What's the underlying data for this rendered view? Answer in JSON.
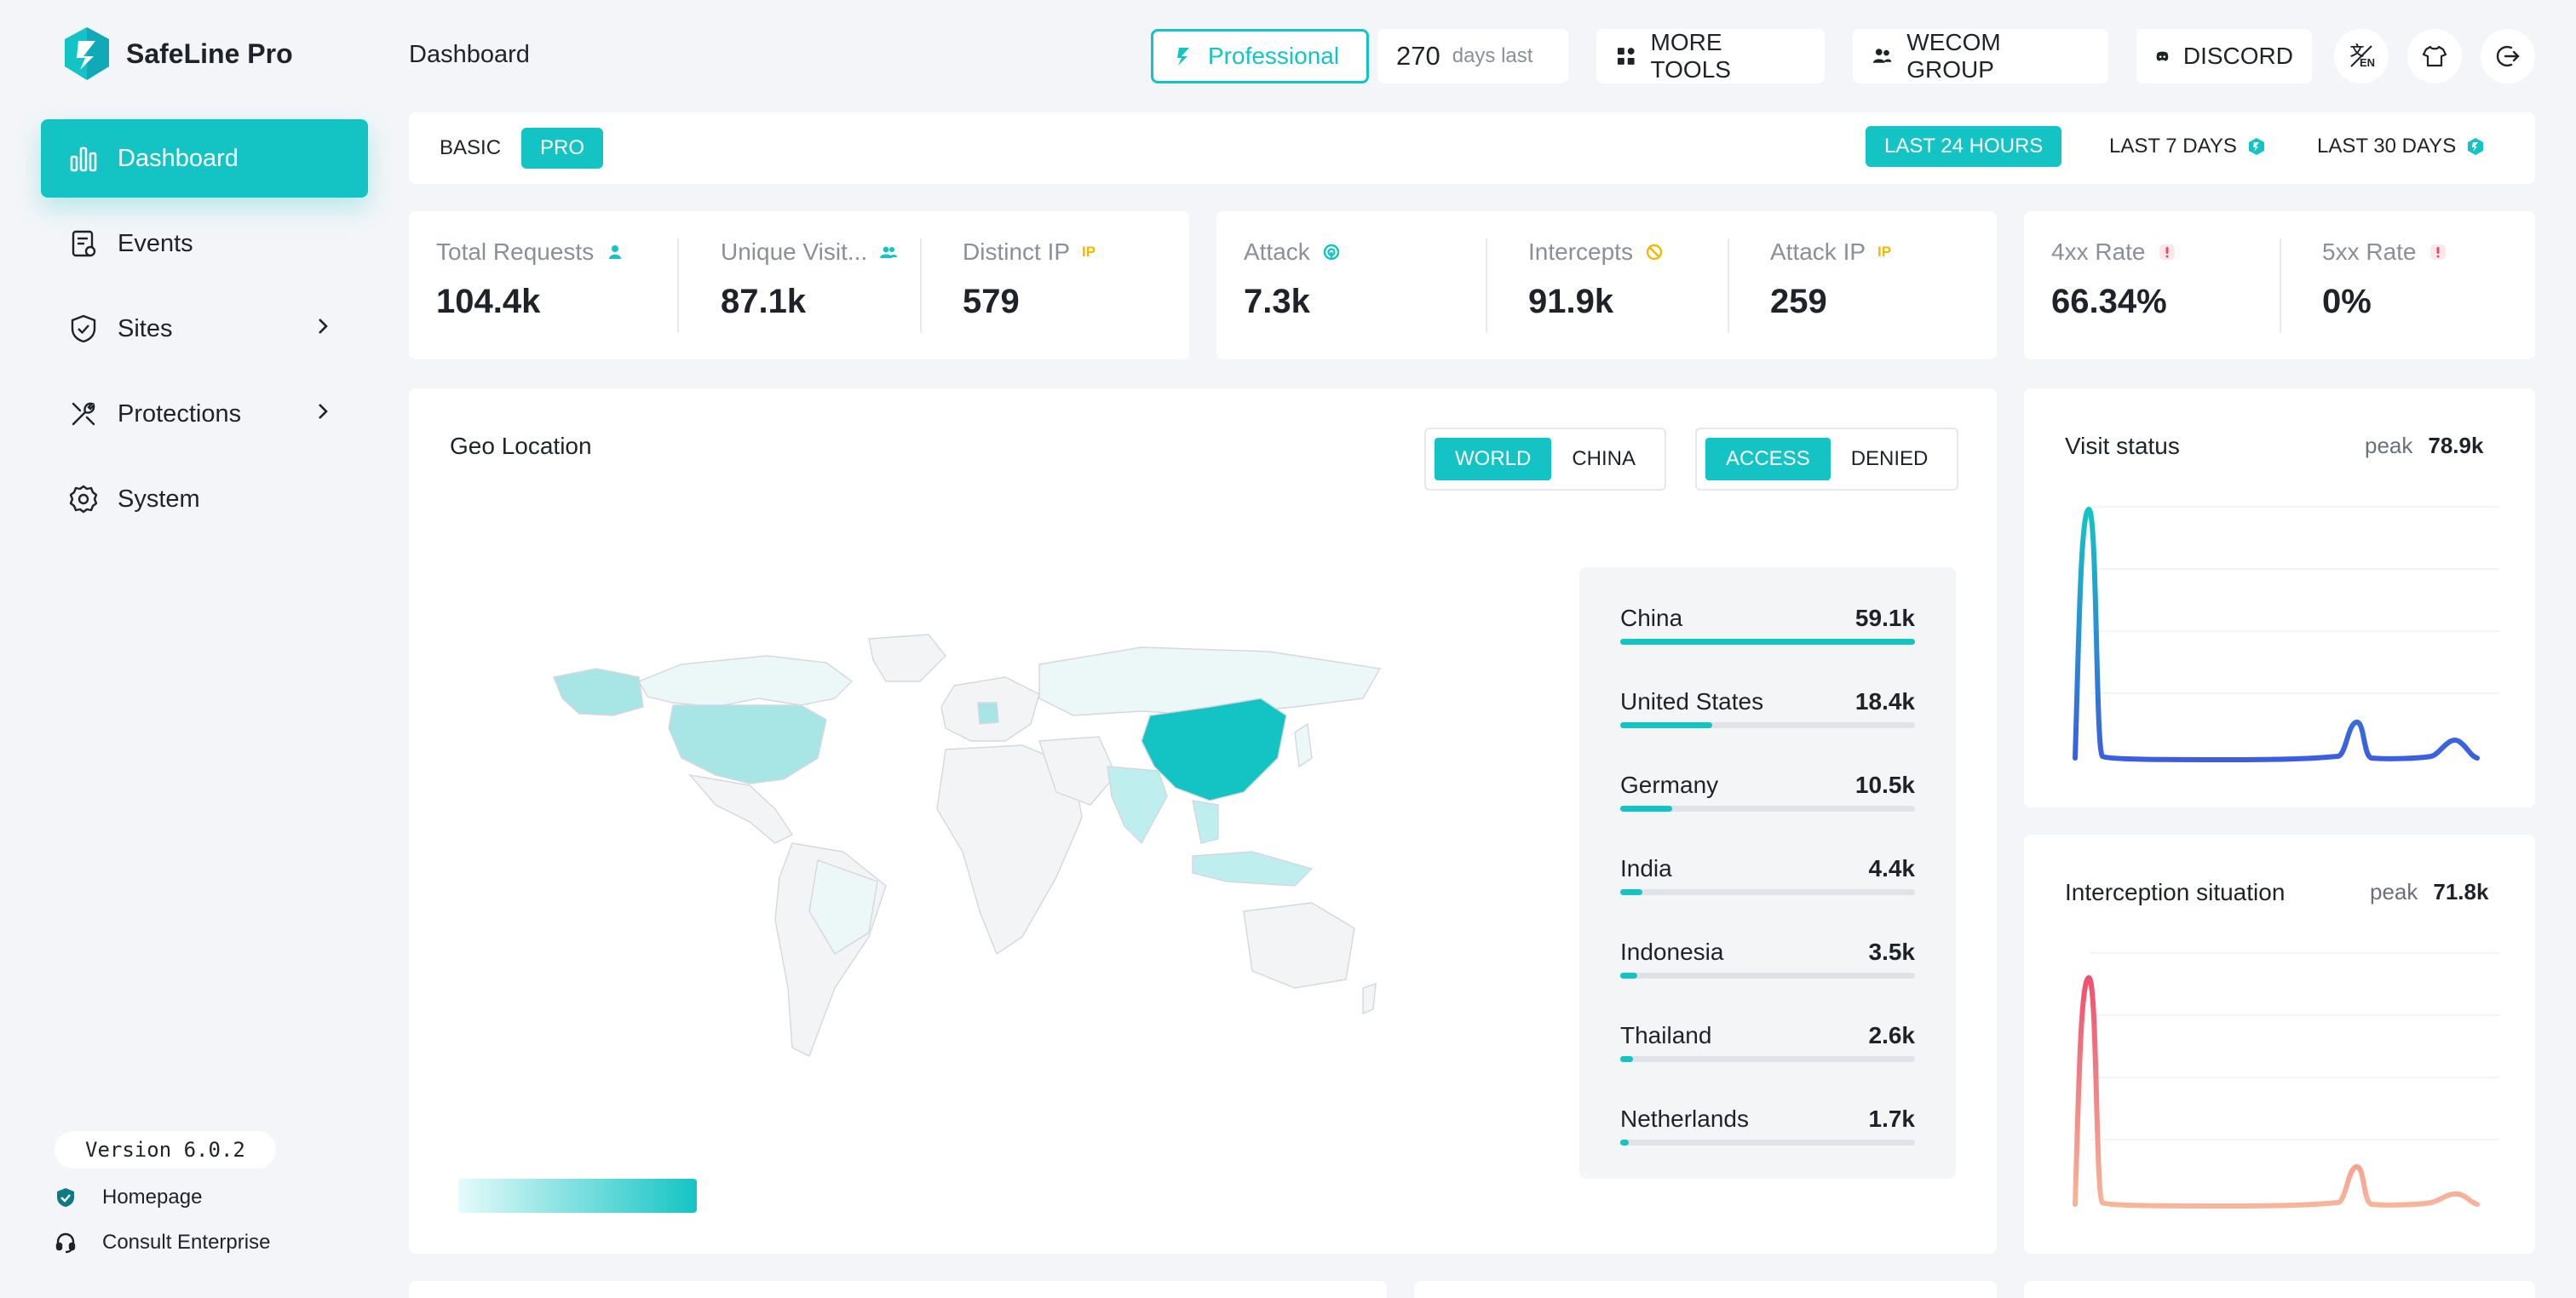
{
  "app": {
    "name": "SafeLine Pro",
    "page_title": "Dashboard"
  },
  "sidebar": {
    "items": [
      {
        "label": "Dashboard",
        "icon": "bar-chart-icon",
        "active": true
      },
      {
        "label": "Events",
        "icon": "clipboard-icon"
      },
      {
        "label": "Sites",
        "icon": "shield-icon",
        "has_submenu": true
      },
      {
        "label": "Protections",
        "icon": "tools-icon",
        "has_submenu": true
      },
      {
        "label": "System",
        "icon": "gear-icon"
      }
    ],
    "version": "Version 6.0.2",
    "links": [
      {
        "label": "Homepage",
        "icon": "shield-badge-icon"
      },
      {
        "label": "Consult Enterprise",
        "icon": "headset-icon"
      }
    ]
  },
  "header": {
    "license": "Professional",
    "days_value": "270",
    "days_label": "days last",
    "more_tools": "MORE TOOLS",
    "wecom": "WECOM GROUP",
    "discord": "DISCORD",
    "icons": [
      "language-icon",
      "shirt-icon",
      "logout-icon"
    ]
  },
  "filters": {
    "modes": [
      "BASIC",
      "PRO"
    ],
    "active_mode": "PRO",
    "ranges": [
      "LAST 24 HOURS",
      "LAST 7 DAYS",
      "LAST 30 DAYS"
    ],
    "active_range": "LAST 24 HOURS"
  },
  "stats": {
    "total_requests": {
      "label": "Total Requests",
      "value": "104.4k"
    },
    "unique_visitors": {
      "label": "Unique Visit...",
      "value": "87.1k"
    },
    "distinct_ip": {
      "label": "Distinct IP",
      "value": "579",
      "tag": "IP"
    },
    "attack": {
      "label": "Attack",
      "value": "7.3k"
    },
    "intercepts": {
      "label": "Intercepts",
      "value": "91.9k"
    },
    "attack_ip": {
      "label": "Attack IP",
      "value": "259",
      "tag": "IP"
    },
    "rate_4xx": {
      "label": "4xx Rate",
      "value": "66.34%"
    },
    "rate_5xx": {
      "label": "5xx Rate",
      "value": "0%"
    }
  },
  "geo": {
    "title": "Geo Location",
    "scope_options": [
      "WORLD",
      "CHINA"
    ],
    "scope_active": "WORLD",
    "type_options": [
      "ACCESS",
      "DENIED"
    ],
    "type_active": "ACCESS",
    "ranking": [
      {
        "country": "China",
        "value": "59.1k",
        "num": 59.1
      },
      {
        "country": "United States",
        "value": "18.4k",
        "num": 18.4
      },
      {
        "country": "Germany",
        "value": "10.5k",
        "num": 10.5
      },
      {
        "country": "India",
        "value": "4.4k",
        "num": 4.4
      },
      {
        "country": "Indonesia",
        "value": "3.5k",
        "num": 3.5
      },
      {
        "country": "Thailand",
        "value": "2.6k",
        "num": 2.6
      },
      {
        "country": "Netherlands",
        "value": "1.7k",
        "num": 1.7
      }
    ]
  },
  "visit_status": {
    "title": "Visit status",
    "peak_label": "peak",
    "peak_value": "78.9k",
    "colors": {
      "top": "#14c4c4",
      "bottom": "#3d5de0"
    }
  },
  "interception": {
    "title": "Interception situation",
    "peak_label": "peak",
    "peak_value": "71.8k",
    "colors": {
      "top": "#f0506e",
      "bottom": "#f7b59a"
    }
  },
  "colors": {
    "accent": "#14c4c4",
    "warn": "#f5b800",
    "danger": "#f0405a"
  }
}
